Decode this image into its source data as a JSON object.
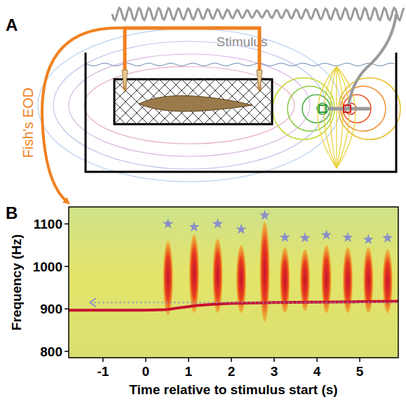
{
  "panel_a": {
    "letter": "A",
    "stimulus_label": "Stimulus",
    "eod_label": "Fish's EOD"
  },
  "chart_data": {
    "type": "spectrogram",
    "panel_letter": "B",
    "x_label": "Time relative to stimulus start (s)",
    "y_label": "Frequency (Hz)",
    "xlim": [
      -1.8,
      5.9
    ],
    "ylim": [
      785,
      1140
    ],
    "xticks": [
      -1,
      0,
      1,
      2,
      3,
      4,
      5
    ],
    "yticks": [
      800,
      900,
      1000,
      1100
    ],
    "series": [
      {
        "type": "line",
        "color": "#c8102e",
        "x": [
          -1.8,
          0,
          0.45,
          0.6,
          0.9,
          1.2,
          1.6,
          2,
          2.5,
          3,
          4,
          5,
          5.9
        ],
        "values": [
          897,
          897,
          898,
          900,
          904,
          908,
          911,
          913,
          914,
          915,
          916,
          917,
          918
        ]
      },
      {
        "type": "range",
        "color": "#e8401c",
        "x": [
          0.52,
          1.13,
          1.68,
          2.23,
          2.78,
          3.25,
          3.72,
          4.22,
          4.72,
          5.2,
          5.65
        ],
        "values": [
          1060,
          1075,
          1065,
          1050,
          1105,
          1045,
          1040,
          1050,
          1045,
          1045,
          1040
        ],
        "lower": [
          885,
          890,
          890,
          890,
          870,
          890,
          895,
          890,
          890,
          890,
          890
        ]
      },
      {
        "type": "scatter",
        "marker": "star",
        "color": "#8a8fc9",
        "x": [
          0.52,
          1.13,
          1.68,
          2.23,
          2.78,
          3.25,
          3.72,
          4.22,
          4.72,
          5.2,
          5.65
        ],
        "values": [
          1100,
          1093,
          1100,
          1087,
          1120,
          1068,
          1067,
          1074,
          1068,
          1063,
          1067
        ]
      },
      {
        "type": "line",
        "line_style": "dotted",
        "marker": "arrow",
        "color": "#8a8fc9",
        "x": [
          -1.3,
          5.9
        ],
        "values": [
          915,
          915
        ]
      }
    ]
  }
}
